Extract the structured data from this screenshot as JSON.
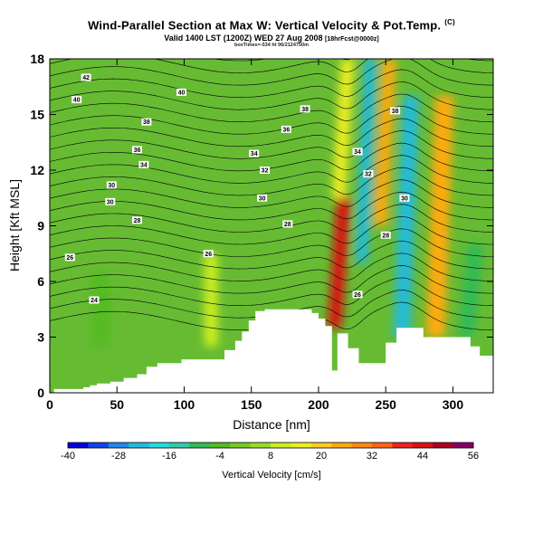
{
  "title": {
    "main": "Wind-Parallel Section at Max W: Vertical Velocity & Pot.Temp.",
    "mark": "(C)",
    "subtitle": "Valid 1400 LST (1200Z) WED 27 Aug 2008",
    "subtitle_small": "[18hrFcst@0000z]",
    "id_line": "boxTimes=-534 ht 96/2124750m"
  },
  "chart_data": {
    "type": "heatmap",
    "xlabel": "Distance [nm]",
    "ylabel": "Height [Kft MSL]",
    "xlim": [
      0,
      330
    ],
    "ylim": [
      0,
      18
    ],
    "xticks": [
      0,
      50,
      100,
      150,
      200,
      250,
      300
    ],
    "yticks": [
      0,
      3,
      6,
      9,
      12,
      15,
      18
    ],
    "colorbar": {
      "label": "Vertical Velocity [cm/s]",
      "ticks": [
        -40,
        -28,
        -16,
        -4,
        8,
        20,
        32,
        44,
        56
      ],
      "colors": [
        "#0000dd",
        "#1144ee",
        "#2288ee",
        "#22bbdd",
        "#22dddd",
        "#33ccaa",
        "#33bb55",
        "#55bb22",
        "#77cc22",
        "#99dd22",
        "#ccee22",
        "#eeee22",
        "#ffcc22",
        "#ffaa11",
        "#ff8811",
        "#ff6611",
        "#ee2222",
        "#dd1111",
        "#aa0022",
        "#880066"
      ]
    },
    "velocity_features": [
      {
        "x_center": 38,
        "z_bottom": 2.5,
        "z_top": 6.5,
        "width": 14,
        "value": -6
      },
      {
        "x_center": 120,
        "z_bottom": 2.5,
        "z_top": 7.5,
        "width": 10,
        "value": 12
      },
      {
        "x_center": 212,
        "z_bottom": 3.5,
        "z_top": 10.5,
        "width": 10,
        "value": 46
      },
      {
        "x_center": 215,
        "z_bottom": 10.5,
        "z_top": 18,
        "width": 10,
        "value": 14
      },
      {
        "x_center": 232,
        "z_bottom": 7,
        "z_top": 18,
        "width": 9,
        "value": -22
      },
      {
        "x_center": 246,
        "z_bottom": 9,
        "z_top": 18,
        "width": 10,
        "value": 24
      },
      {
        "x_center": 262,
        "z_bottom": 3,
        "z_top": 16,
        "width": 12,
        "value": -24
      },
      {
        "x_center": 287,
        "z_bottom": 3,
        "z_top": 16,
        "width": 14,
        "value": 26
      },
      {
        "x_center": 310,
        "z_bottom": 3,
        "z_top": 8,
        "width": 12,
        "value": -8
      }
    ],
    "terrain": {
      "x": [
        0,
        3,
        3,
        25,
        25,
        30,
        30,
        35,
        35,
        45,
        45,
        55,
        55,
        65,
        65,
        72,
        72,
        80,
        80,
        98,
        98,
        130,
        130,
        138,
        138,
        143,
        143,
        148,
        148,
        153,
        153,
        160,
        160,
        195,
        195,
        200,
        200,
        205,
        205,
        210,
        210,
        214,
        214,
        222,
        222,
        230,
        230,
        250,
        250,
        258,
        258,
        278,
        278,
        313,
        313,
        320,
        320,
        330
      ],
      "z": [
        0,
        0,
        0.2,
        0.2,
        0.3,
        0.3,
        0.4,
        0.4,
        0.5,
        0.5,
        0.6,
        0.6,
        0.8,
        0.8,
        1.0,
        1.0,
        1.4,
        1.4,
        1.6,
        1.6,
        1.8,
        1.8,
        2.3,
        2.3,
        2.8,
        2.8,
        3.3,
        3.3,
        3.9,
        3.9,
        4.4,
        4.4,
        4.5,
        4.5,
        4.3,
        4.3,
        4.0,
        4.0,
        3.6,
        3.6,
        1.2,
        1.2,
        3.2,
        3.2,
        2.4,
        2.4,
        1.6,
        1.6,
        2.7,
        2.7,
        3.5,
        3.5,
        3.0,
        3.0,
        2.5,
        2.5,
        2.0,
        2.0
      ]
    },
    "theta_contour_labels": [
      {
        "x": 27,
        "z": 17.0,
        "label": "42"
      },
      {
        "x": 20,
        "z": 15.8,
        "label": "40"
      },
      {
        "x": 98,
        "z": 16.2,
        "label": "40"
      },
      {
        "x": 72,
        "z": 14.6,
        "label": "38"
      },
      {
        "x": 65,
        "z": 13.1,
        "label": "36"
      },
      {
        "x": 70,
        "z": 12.3,
        "label": "34"
      },
      {
        "x": 46,
        "z": 11.2,
        "label": "30"
      },
      {
        "x": 45,
        "z": 10.3,
        "label": "30"
      },
      {
        "x": 65,
        "z": 9.3,
        "label": "28"
      },
      {
        "x": 15,
        "z": 7.3,
        "label": "26"
      },
      {
        "x": 33,
        "z": 5.0,
        "label": "24"
      },
      {
        "x": 118,
        "z": 7.5,
        "label": "26"
      },
      {
        "x": 152,
        "z": 12.9,
        "label": "34"
      },
      {
        "x": 160,
        "z": 12.0,
        "label": "32"
      },
      {
        "x": 158,
        "z": 10.5,
        "label": "30"
      },
      {
        "x": 176,
        "z": 14.2,
        "label": "36"
      },
      {
        "x": 190,
        "z": 15.3,
        "label": "38"
      },
      {
        "x": 177,
        "z": 9.1,
        "label": "28"
      },
      {
        "x": 229,
        "z": 13.0,
        "label": "34"
      },
      {
        "x": 237,
        "z": 11.8,
        "label": "32"
      },
      {
        "x": 264,
        "z": 10.5,
        "label": "30"
      },
      {
        "x": 250,
        "z": 8.5,
        "label": "28"
      },
      {
        "x": 229,
        "z": 5.3,
        "label": "26"
      },
      {
        "x": 257,
        "z": 15.2,
        "label": "38"
      }
    ]
  }
}
